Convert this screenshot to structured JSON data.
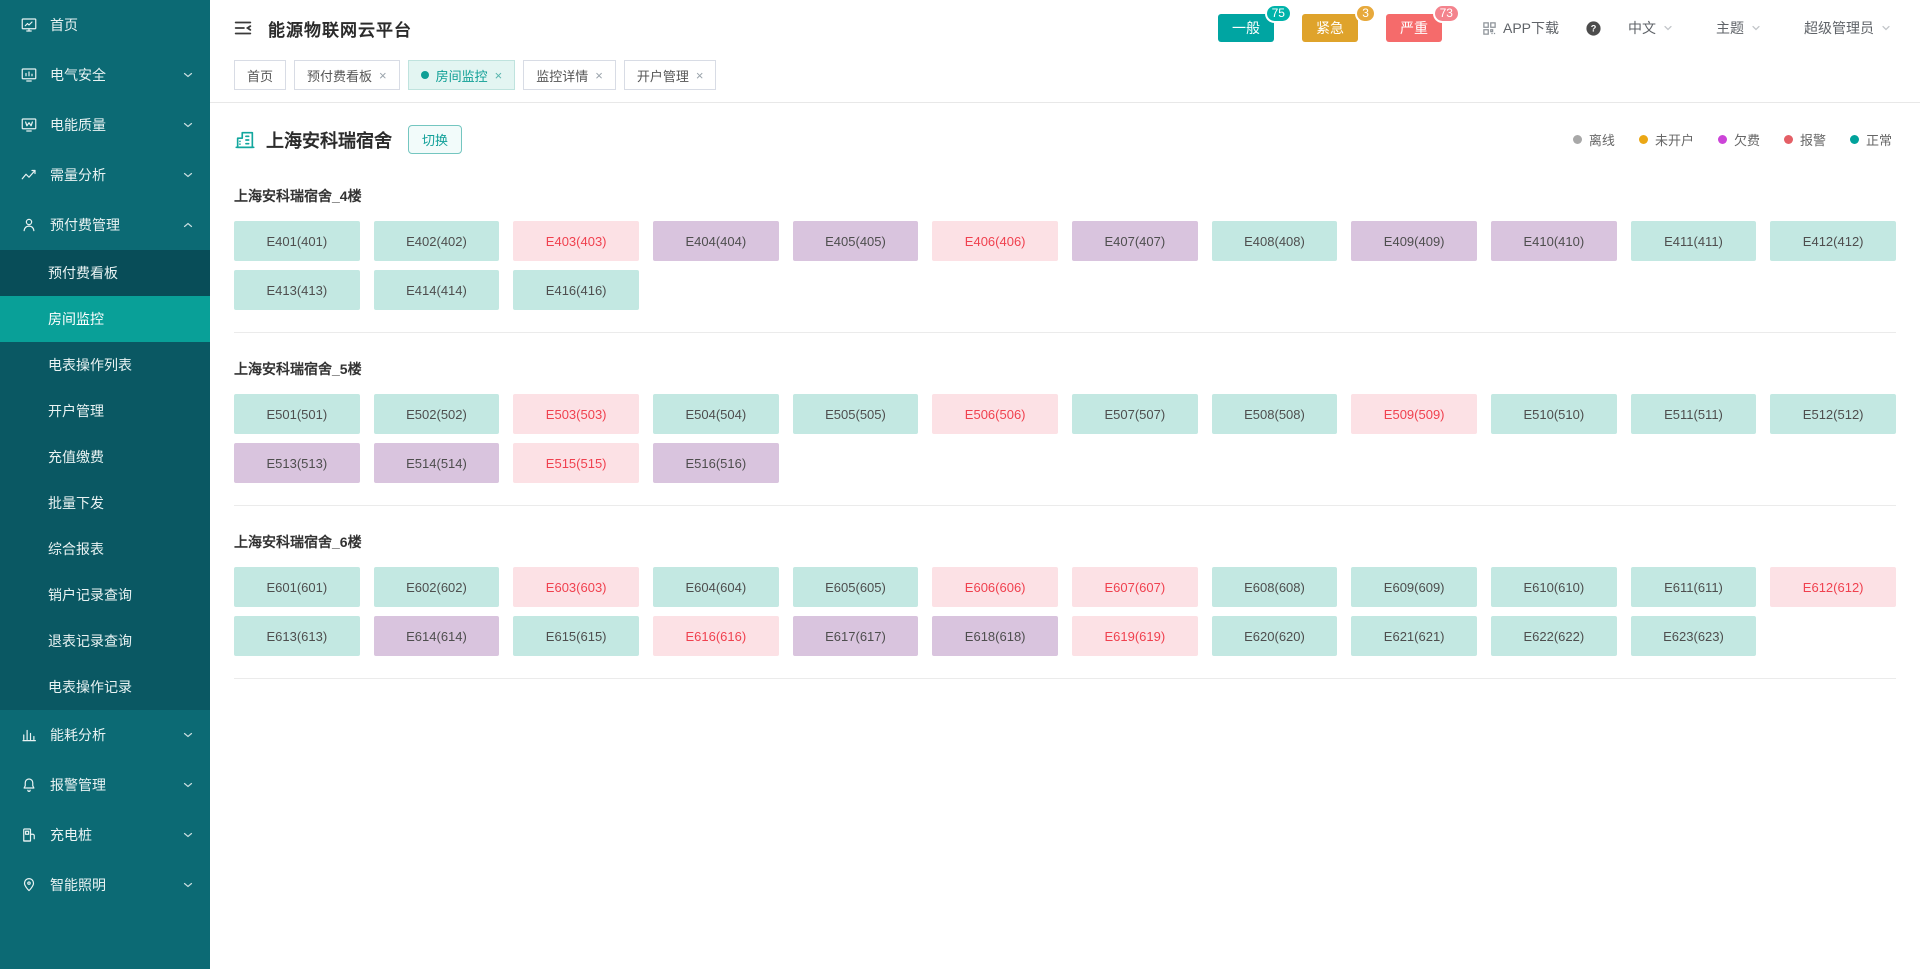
{
  "app": {
    "title": "能源物联网云平台"
  },
  "header": {
    "badges": [
      {
        "label": "一般",
        "count": "75",
        "pill_color": "#00a5a2",
        "bubble_color": "#00b3aa"
      },
      {
        "label": "紧急",
        "count": "3",
        "pill_color": "#dfa32b",
        "bubble_color": "#e7a93c"
      },
      {
        "label": "严重",
        "count": "73",
        "pill_color": "#f56b6b",
        "bubble_color": "#f4838d"
      }
    ],
    "app_download": "APP下载",
    "language": "中文",
    "theme": "主题",
    "user": "超级管理员"
  },
  "tabs": [
    {
      "label": "首页",
      "active": false,
      "closable": false
    },
    {
      "label": "预付费看板",
      "active": false,
      "closable": true
    },
    {
      "label": "房间监控",
      "active": true,
      "closable": true
    },
    {
      "label": "监控详情",
      "active": false,
      "closable": true
    },
    {
      "label": "开户管理",
      "active": false,
      "closable": true
    }
  ],
  "sidebar": {
    "items": [
      {
        "label": "首页",
        "icon": "home-icon",
        "chevron": null
      },
      {
        "label": "电气安全",
        "icon": "electrical-safety-icon",
        "chevron": "down"
      },
      {
        "label": "电能质量",
        "icon": "power-quality-icon",
        "chevron": "down"
      },
      {
        "label": "需量分析",
        "icon": "demand-analysis-icon",
        "chevron": "down"
      },
      {
        "label": "预付费管理",
        "icon": "prepaid-management-icon",
        "chevron": "up",
        "expanded": true,
        "children": [
          {
            "label": "预付费看板",
            "state": "visited"
          },
          {
            "label": "房间监控",
            "state": "active"
          },
          {
            "label": "电表操作列表",
            "state": ""
          },
          {
            "label": "开户管理",
            "state": ""
          },
          {
            "label": "充值缴费",
            "state": ""
          },
          {
            "label": "批量下发",
            "state": ""
          },
          {
            "label": "综合报表",
            "state": ""
          },
          {
            "label": "销户记录查询",
            "state": ""
          },
          {
            "label": "退表记录查询",
            "state": ""
          },
          {
            "label": "电表操作记录",
            "state": ""
          }
        ]
      },
      {
        "label": "能耗分析",
        "icon": "energy-analysis-icon",
        "chevron": "down"
      },
      {
        "label": "报警管理",
        "icon": "alarm-management-icon",
        "chevron": "down"
      },
      {
        "label": "充电桩",
        "icon": "charging-pile-icon",
        "chevron": "down"
      },
      {
        "label": "智能照明",
        "icon": "smart-lighting-icon",
        "chevron": "down"
      }
    ]
  },
  "toolbar": {
    "building_name": "上海安科瑞宿舍",
    "switch_label": "切换"
  },
  "legend": [
    {
      "label": "离线",
      "color": "#a8a8a8"
    },
    {
      "label": "未开户",
      "color": "#eba715"
    },
    {
      "label": "欠费",
      "color": "#cc44d8"
    },
    {
      "label": "报警",
      "color": "#e45f66"
    },
    {
      "label": "正常",
      "color": "#00a29b"
    }
  ],
  "room_status_colors": {
    "normal": {
      "bg": "#c3e8e2",
      "text": "#4e4e4e"
    },
    "arrears": {
      "bg": "#d9c4de",
      "text": "#4e4e4e"
    },
    "alarm": {
      "bg": "#fce1e5",
      "text": "#f0414f"
    }
  },
  "floors": [
    {
      "name": "上海安科瑞宿舍_4楼",
      "rooms": [
        {
          "label": "E401(401)",
          "status": "normal"
        },
        {
          "label": "E402(402)",
          "status": "normal"
        },
        {
          "label": "E403(403)",
          "status": "alarm"
        },
        {
          "label": "E404(404)",
          "status": "arrears"
        },
        {
          "label": "E405(405)",
          "status": "arrears"
        },
        {
          "label": "E406(406)",
          "status": "alarm"
        },
        {
          "label": "E407(407)",
          "status": "arrears"
        },
        {
          "label": "E408(408)",
          "status": "normal"
        },
        {
          "label": "E409(409)",
          "status": "arrears"
        },
        {
          "label": "E410(410)",
          "status": "arrears"
        },
        {
          "label": "E411(411)",
          "status": "normal"
        },
        {
          "label": "E412(412)",
          "status": "normal"
        },
        {
          "label": "E413(413)",
          "status": "normal"
        },
        {
          "label": "E414(414)",
          "status": "normal"
        },
        {
          "label": "E416(416)",
          "status": "normal"
        }
      ]
    },
    {
      "name": "上海安科瑞宿舍_5楼",
      "rooms": [
        {
          "label": "E501(501)",
          "status": "normal"
        },
        {
          "label": "E502(502)",
          "status": "normal"
        },
        {
          "label": "E503(503)",
          "status": "alarm"
        },
        {
          "label": "E504(504)",
          "status": "normal"
        },
        {
          "label": "E505(505)",
          "status": "normal"
        },
        {
          "label": "E506(506)",
          "status": "alarm"
        },
        {
          "label": "E507(507)",
          "status": "normal"
        },
        {
          "label": "E508(508)",
          "status": "normal"
        },
        {
          "label": "E509(509)",
          "status": "alarm"
        },
        {
          "label": "E510(510)",
          "status": "normal"
        },
        {
          "label": "E511(511)",
          "status": "normal"
        },
        {
          "label": "E512(512)",
          "status": "normal"
        },
        {
          "label": "E513(513)",
          "status": "arrears"
        },
        {
          "label": "E514(514)",
          "status": "arrears"
        },
        {
          "label": "E515(515)",
          "status": "alarm"
        },
        {
          "label": "E516(516)",
          "status": "arrears"
        }
      ]
    },
    {
      "name": "上海安科瑞宿舍_6楼",
      "rooms": [
        {
          "label": "E601(601)",
          "status": "normal"
        },
        {
          "label": "E602(602)",
          "status": "normal"
        },
        {
          "label": "E603(603)",
          "status": "alarm"
        },
        {
          "label": "E604(604)",
          "status": "normal"
        },
        {
          "label": "E605(605)",
          "status": "normal"
        },
        {
          "label": "E606(606)",
          "status": "alarm"
        },
        {
          "label": "E607(607)",
          "status": "alarm"
        },
        {
          "label": "E608(608)",
          "status": "normal"
        },
        {
          "label": "E609(609)",
          "status": "normal"
        },
        {
          "label": "E610(610)",
          "status": "normal"
        },
        {
          "label": "E611(611)",
          "status": "normal"
        },
        {
          "label": "E612(612)",
          "status": "alarm"
        },
        {
          "label": "E613(613)",
          "status": "normal"
        },
        {
          "label": "E614(614)",
          "status": "arrears"
        },
        {
          "label": "E615(615)",
          "status": "normal"
        },
        {
          "label": "E616(616)",
          "status": "alarm"
        },
        {
          "label": "E617(617)",
          "status": "arrears"
        },
        {
          "label": "E618(618)",
          "status": "arrears"
        },
        {
          "label": "E619(619)",
          "status": "alarm"
        },
        {
          "label": "E620(620)",
          "status": "normal"
        },
        {
          "label": "E621(621)",
          "status": "normal"
        },
        {
          "label": "E622(622)",
          "status": "normal"
        },
        {
          "label": "E623(623)",
          "status": "normal"
        }
      ]
    }
  ]
}
